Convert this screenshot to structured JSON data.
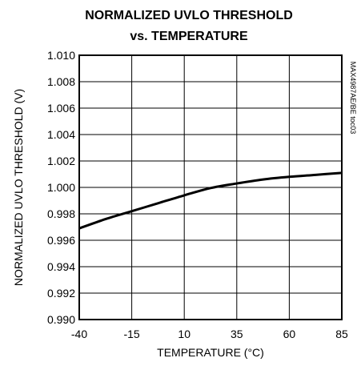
{
  "chart_data": {
    "type": "line",
    "title_lines": [
      "NORMALIZED UVLO THRESHOLD",
      "vs. TEMPERATURE"
    ],
    "xlabel": "TEMPERATURE (°C)",
    "ylabel": "NORMALIZED UVLO THRESHOLD (V)",
    "side_note": "MAX4987AE/BE toc03",
    "xlim": [
      -40,
      85
    ],
    "ylim": [
      0.99,
      1.01
    ],
    "x_ticks": [
      "-40",
      "-15",
      "10",
      "35",
      "60",
      "85"
    ],
    "y_ticks": [
      "0.990",
      "0.992",
      "0.994",
      "0.996",
      "0.998",
      "1.000",
      "1.002",
      "1.004",
      "1.006",
      "1.008",
      "1.010"
    ],
    "grid": true,
    "series": [
      {
        "x": [
          -40,
          -27.5,
          -15,
          -2.5,
          10,
          22.5,
          35,
          47.5,
          60,
          72.5,
          85
        ],
        "y": [
          0.9969,
          0.9976,
          0.9982,
          0.9988,
          0.9994,
          0.99995,
          1.0003,
          1.0006,
          1.0008,
          1.00095,
          1.0011
        ]
      }
    ]
  }
}
